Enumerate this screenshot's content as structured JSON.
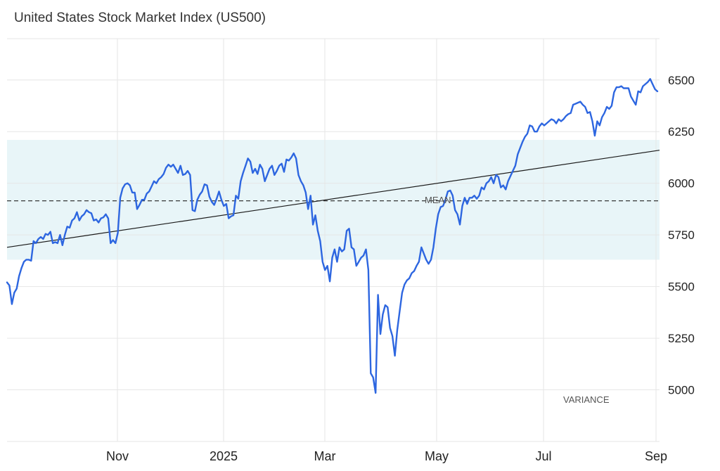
{
  "chart_data": {
    "type": "line",
    "title": "United States Stock Market Index (US500)",
    "x_ticks": [
      "Nov",
      "2025",
      "Mar",
      "May",
      "Jul",
      "Sep"
    ],
    "y_ticks": [
      5000,
      5250,
      5500,
      5750,
      6000,
      6250,
      6500
    ],
    "ylim": [
      4750,
      6700
    ],
    "grid": true,
    "series": [
      {
        "values": [
          5520,
          5505,
          5415,
          5470,
          5490,
          5550,
          5590,
          5620,
          5630,
          5630,
          5625,
          5720,
          5710,
          5730,
          5740,
          5730,
          5755,
          5750,
          5765,
          5710,
          5715,
          5710,
          5750,
          5700,
          5750,
          5790,
          5785,
          5820,
          5830,
          5860,
          5820,
          5840,
          5850,
          5870,
          5860,
          5855,
          5820,
          5825,
          5810,
          5830,
          5835,
          5850,
          5830,
          5710,
          5725,
          5710,
          5760,
          5930,
          5975,
          5995,
          6000,
          5990,
          5955,
          5955,
          5875,
          5895,
          5920,
          5920,
          5950,
          5960,
          5985,
          6010,
          6000,
          6020,
          6030,
          6045,
          6075,
          6090,
          6080,
          6090,
          6070,
          6050,
          6085,
          6040,
          6045,
          6060,
          6040,
          5870,
          5865,
          5920,
          5945,
          5960,
          5995,
          5990,
          5935,
          5910,
          5895,
          5925,
          5960,
          5920,
          5890,
          5900,
          5830,
          5840,
          5845,
          5940,
          5925,
          6010,
          6050,
          6085,
          6120,
          6105,
          6050,
          6070,
          6045,
          6090,
          6070,
          6010,
          6040,
          6070,
          6085,
          6040,
          6060,
          6085,
          6095,
          6055,
          6115,
          6110,
          6125,
          6145,
          6120,
          6040,
          6010,
          5990,
          5955,
          5875,
          5940,
          5800,
          5845,
          5770,
          5720,
          5620,
          5580,
          5600,
          5525,
          5640,
          5680,
          5620,
          5690,
          5670,
          5680,
          5770,
          5780,
          5690,
          5680,
          5600,
          5620,
          5640,
          5650,
          5680,
          5580,
          5080,
          5060,
          4985,
          5460,
          5270,
          5365,
          5410,
          5400,
          5300,
          5260,
          5165,
          5290,
          5380,
          5470,
          5510,
          5530,
          5540,
          5565,
          5575,
          5600,
          5620,
          5690,
          5660,
          5630,
          5610,
          5630,
          5690,
          5780,
          5850,
          5885,
          5890,
          5920,
          5960,
          5965,
          5940,
          5870,
          5850,
          5800,
          5890,
          5930,
          5900,
          5930,
          5930,
          5940,
          5925,
          5940,
          5980,
          5970,
          6000,
          6010,
          6030,
          6000,
          6040,
          6030,
          5980,
          5990,
          5970,
          6010,
          6035,
          6060,
          6085,
          6140,
          6170,
          6200,
          6225,
          6240,
          6280,
          6275,
          6250,
          6250,
          6275,
          6290,
          6280,
          6290,
          6300,
          6310,
          6305,
          6290,
          6310,
          6300,
          6310,
          6325,
          6335,
          6340,
          6380,
          6385,
          6390,
          6395,
          6380,
          6370,
          6340,
          6345,
          6300,
          6230,
          6300,
          6280,
          6320,
          6340,
          6370,
          6360,
          6375,
          6440,
          6465,
          6465,
          6470,
          6460,
          6460,
          6460,
          6420,
          6400,
          6380,
          6445,
          6440,
          6470,
          6480,
          6490,
          6505,
          6480,
          6455,
          6445
        ]
      }
    ],
    "mean_value": 5915,
    "band": [
      5630,
      6210
    ],
    "trend": [
      5690,
      6160
    ],
    "annotations": {
      "mean": "MEAN",
      "variance": "VARIANCE"
    },
    "colors": {
      "line": "#2d66e0",
      "band": "#e8f5f8",
      "trend": "#1a1a1a",
      "grid": "#e6e6e6"
    }
  }
}
